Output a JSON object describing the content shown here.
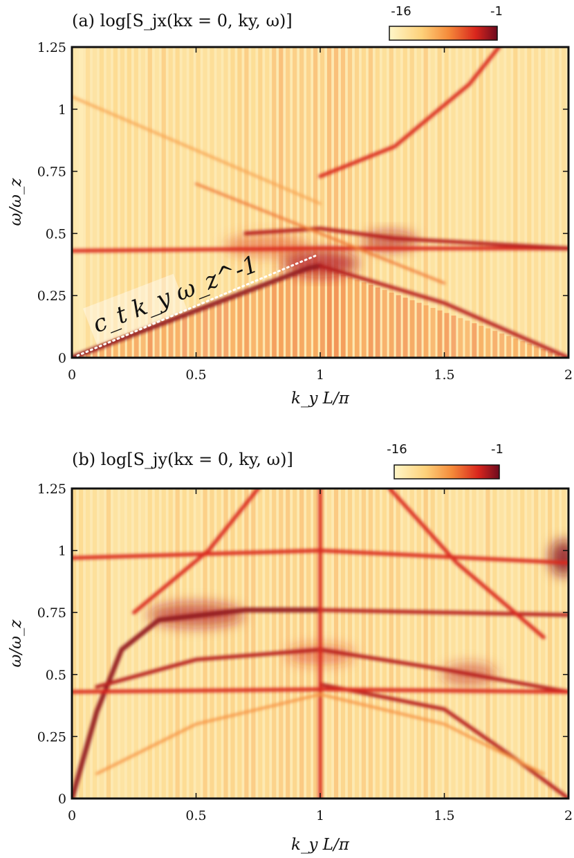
{
  "chart_data": [
    {
      "panel": "a",
      "type": "heatmap",
      "title": "(a) log[S_jx(kx = 0, ky, ω)]",
      "xlabel": "k_y L/π",
      "ylabel": "ω/ω_z",
      "xlim": [
        0,
        2
      ],
      "ylim": [
        0,
        1.25
      ],
      "xticks": [
        "0",
        "0.5",
        "1",
        "1.5",
        "2"
      ],
      "yticks": [
        "0",
        "0.25",
        "0.5",
        "0.75",
        "1",
        "1.25"
      ],
      "colorbar": {
        "min_label": "-16",
        "max_label": "-1",
        "min": -16,
        "max": -1
      },
      "annotation": {
        "text": "c_t k_y ω_z^-1",
        "from": [
          0,
          0
        ],
        "to": [
          0.98,
          0.41
        ],
        "style": "white dotted"
      },
      "branches": [
        {
          "name": "linear-acoustic",
          "points": [
            [
              0,
              0
            ],
            [
              0.5,
              0.19
            ],
            [
              0.95,
              0.36
            ],
            [
              1.0,
              0.37
            ]
          ],
          "level": -2
        },
        {
          "name": "descending",
          "points": [
            [
              1.0,
              0.37
            ],
            [
              1.5,
              0.22
            ],
            [
              2.0,
              0
            ]
          ],
          "level": -3
        },
        {
          "name": "upper-parabola",
          "points": [
            [
              1.0,
              0.73
            ],
            [
              1.3,
              0.85
            ],
            [
              1.6,
              1.1
            ],
            [
              1.72,
              1.25
            ]
          ],
          "level": -4
        },
        {
          "name": "flat-0.43",
          "points": [
            [
              0,
              0.43
            ],
            [
              1.0,
              0.44
            ],
            [
              2.0,
              0.44
            ]
          ],
          "level": -4
        },
        {
          "name": "flat-0.5",
          "points": [
            [
              0.7,
              0.5
            ],
            [
              1.0,
              0.52
            ],
            [
              1.3,
              0.48
            ],
            [
              2.0,
              0.44
            ]
          ],
          "level": -3
        },
        {
          "name": "crossing-lines",
          "points": [
            [
              0.5,
              0.7
            ],
            [
              1.0,
              0.5
            ],
            [
              1.5,
              0.3
            ]
          ],
          "level": -7
        },
        {
          "name": "faint-upper",
          "points": [
            [
              0,
              1.05
            ],
            [
              1.0,
              0.62
            ]
          ],
          "level": -9
        }
      ]
    },
    {
      "panel": "b",
      "type": "heatmap",
      "title": "(b) log[S_jy(kx = 0, ky, ω)]",
      "xlabel": "k_y L/π",
      "ylabel": "ω/ω_z",
      "xlim": [
        0,
        2
      ],
      "ylim": [
        0,
        1.25
      ],
      "xticks": [
        "0",
        "0.5",
        "1",
        "1.5",
        "2"
      ],
      "yticks": [
        "0",
        "0.25",
        "0.5",
        "0.75",
        "1",
        "1.25"
      ],
      "colorbar": {
        "min_label": "-16",
        "max_label": "-1",
        "min": -16,
        "max": -1
      },
      "branches": [
        {
          "name": "steep-rise",
          "points": [
            [
              0,
              0
            ],
            [
              0.1,
              0.35
            ],
            [
              0.2,
              0.6
            ],
            [
              0.35,
              0.72
            ],
            [
              0.7,
              0.76
            ],
            [
              1.0,
              0.76
            ]
          ],
          "level": -2
        },
        {
          "name": "arc-0.76",
          "points": [
            [
              1.0,
              0.76
            ],
            [
              1.5,
              0.75
            ],
            [
              2.0,
              0.74
            ]
          ],
          "level": -3
        },
        {
          "name": "arc-0.55",
          "points": [
            [
              0.1,
              0.45
            ],
            [
              0.5,
              0.56
            ],
            [
              1.0,
              0.6
            ],
            [
              1.5,
              0.52
            ],
            [
              2.0,
              0.43
            ]
          ],
          "level": -3
        },
        {
          "name": "descending",
          "points": [
            [
              1.0,
              0.46
            ],
            [
              1.5,
              0.36
            ],
            [
              1.8,
              0.15
            ],
            [
              2.0,
              0
            ]
          ],
          "level": -3
        },
        {
          "name": "flat-0.43",
          "points": [
            [
              0,
              0.43
            ],
            [
              1.0,
              0.44
            ],
            [
              2.0,
              0.43
            ]
          ],
          "level": -4
        },
        {
          "name": "flat-0.97",
          "points": [
            [
              0,
              0.97
            ],
            [
              1.0,
              1.0
            ],
            [
              2.0,
              0.95
            ]
          ],
          "level": -4
        },
        {
          "name": "rising-to-1.25",
          "points": [
            [
              0.25,
              0.75
            ],
            [
              0.55,
              1.0
            ],
            [
              0.75,
              1.25
            ]
          ],
          "level": -4
        },
        {
          "name": "falling-from-1.25",
          "points": [
            [
              1.28,
              1.25
            ],
            [
              1.55,
              0.95
            ],
            [
              1.9,
              0.65
            ]
          ],
          "level": -4
        },
        {
          "name": "vertical-k1",
          "points": [
            [
              1.0,
              0
            ],
            [
              1.0,
              1.25
            ]
          ],
          "level": -4
        },
        {
          "name": "faint-parabola",
          "points": [
            [
              0.1,
              0.1
            ],
            [
              0.5,
              0.3
            ],
            [
              1.0,
              0.42
            ],
            [
              1.5,
              0.3
            ],
            [
              1.9,
              0.1
            ]
          ],
          "level": -8
        }
      ]
    }
  ]
}
